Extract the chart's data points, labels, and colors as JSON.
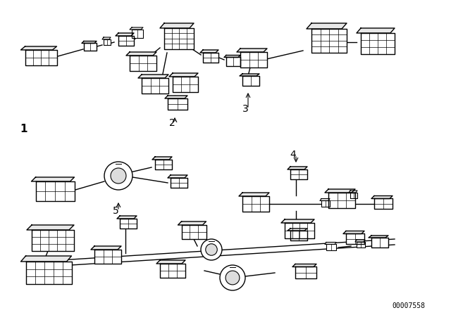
{
  "background_color": "#ffffff",
  "line_color": "#000000",
  "part_number": "00007558",
  "fig_width": 6.4,
  "fig_height": 4.48,
  "dpi": 100
}
